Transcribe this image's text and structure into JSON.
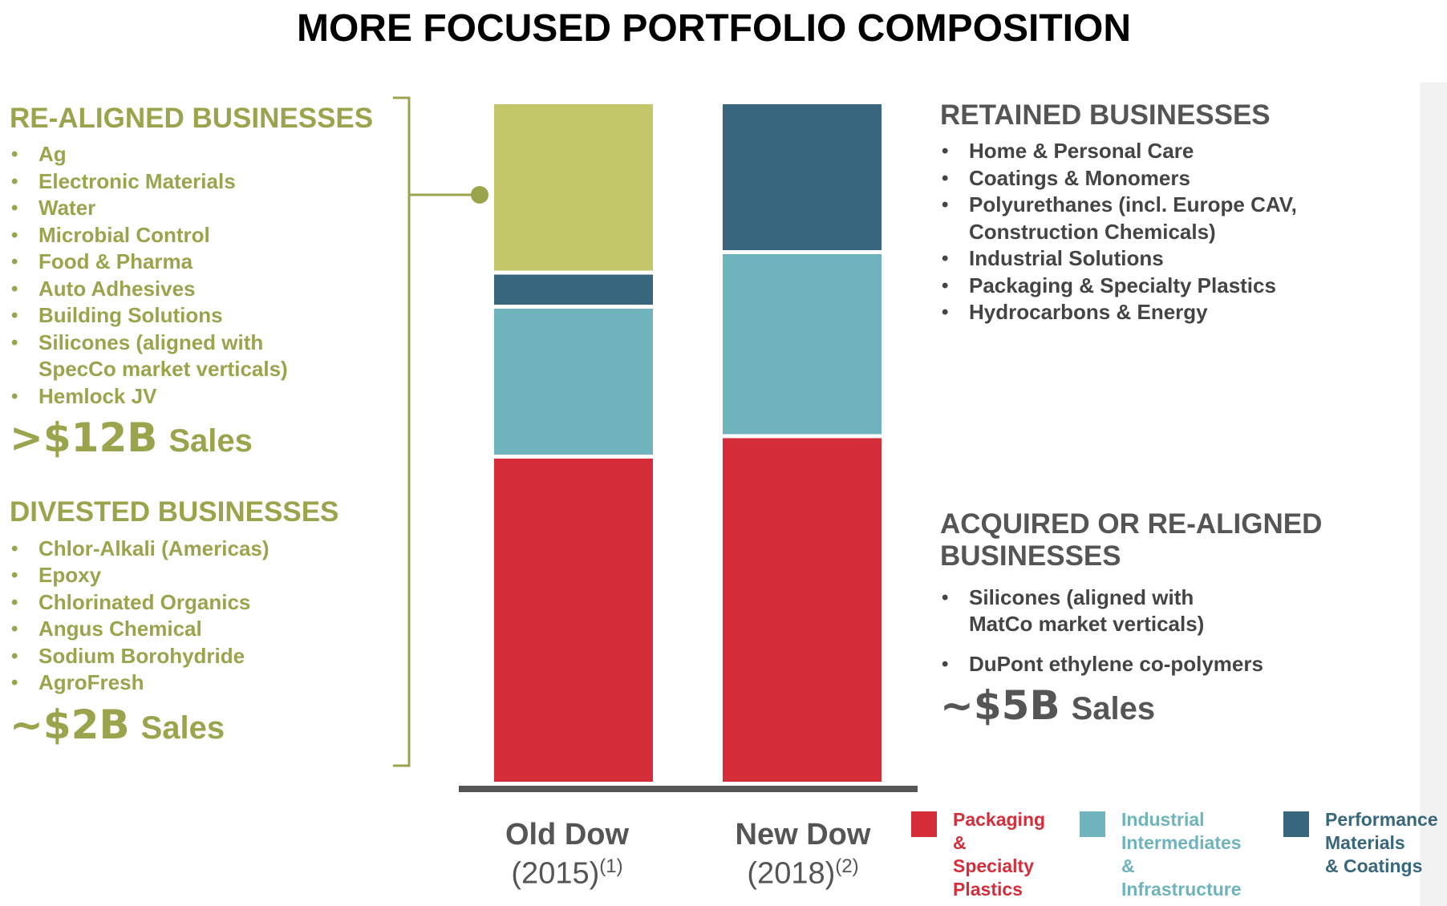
{
  "title": "MORE FOCUSED PORTFOLIO COMPOSITION",
  "left": {
    "realigned": {
      "heading": "RE-ALIGNED BUSINESSES",
      "items": [
        "Ag",
        "Electronic Materials",
        "Water",
        "Microbial Control",
        "Food & Pharma",
        "Auto Adhesives",
        "Building Solutions",
        "Silicones (aligned with\nSpecCo market verticals)",
        "Hemlock JV"
      ],
      "sales_value": ">$12B",
      "sales_label": "Sales"
    },
    "divested": {
      "heading": "DIVESTED BUSINESSES",
      "items": [
        "Chlor-Alkali (Americas)",
        "Epoxy",
        "Chlorinated Organics",
        "Angus Chemical",
        "Sodium Borohydride",
        "AgroFresh"
      ],
      "sales_value": "~$2B",
      "sales_label": "Sales"
    }
  },
  "right": {
    "retained": {
      "heading": "RETAINED BUSINESSES",
      "items": [
        "Home & Personal Care",
        "Coatings & Monomers",
        "Polyurethanes (incl. Europe CAV,\nConstruction Chemicals)",
        "Industrial Solutions",
        "Packaging & Specialty Plastics",
        "Hydrocarbons & Energy"
      ]
    },
    "acquired": {
      "heading": "ACQUIRED OR RE-ALIGNED\nBUSINESSES",
      "items": [
        "Silicones (aligned with\nMatCo market verticals)",
        "DuPont ethylene co-polymers"
      ],
      "sales_value": "~$5B",
      "sales_label": "Sales"
    }
  },
  "colors": {
    "packaging": "#d62d3b",
    "industrial": "#6fb3bd",
    "performance": "#38667c",
    "realigned_segment": "#c3c76a",
    "olive_text": "#9aa44c",
    "gray_text": "#555555"
  },
  "chart_data": {
    "type": "bar",
    "stacked": true,
    "categories": [
      {
        "name": "Old Dow",
        "year": "(2015)",
        "note": "(1)"
      },
      {
        "name": "New Dow",
        "year": "(2018)",
        "note": "(2)"
      }
    ],
    "series": [
      {
        "name": "Packaging & Specialty Plastics",
        "color": "#d62d3b",
        "values": [
          48,
          51
        ]
      },
      {
        "name": "Industrial Intermediates & Infrastructure",
        "color": "#6fb3bd",
        "values": [
          22,
          27
        ]
      },
      {
        "name": "Performance Materials & Coatings",
        "color": "#38667c",
        "values": [
          5,
          22
        ]
      },
      {
        "color": "#c3c76a",
        "values": [
          25,
          0
        ]
      }
    ],
    "ylim": [
      0,
      100
    ],
    "grid": false,
    "legend_position": "bottom-right"
  },
  "legend": [
    {
      "label": "Packaging\n& Specialty\nPlastics",
      "color": "#d62d3b",
      "text_color": "#d62d3b"
    },
    {
      "label": "Industrial\nIntermediates\n& Infrastructure",
      "color": "#6fb3bd",
      "text_color": "#6fb3bd"
    },
    {
      "label": "Performance\nMaterials\n& Coatings",
      "color": "#38667c",
      "text_color": "#38667c"
    }
  ]
}
